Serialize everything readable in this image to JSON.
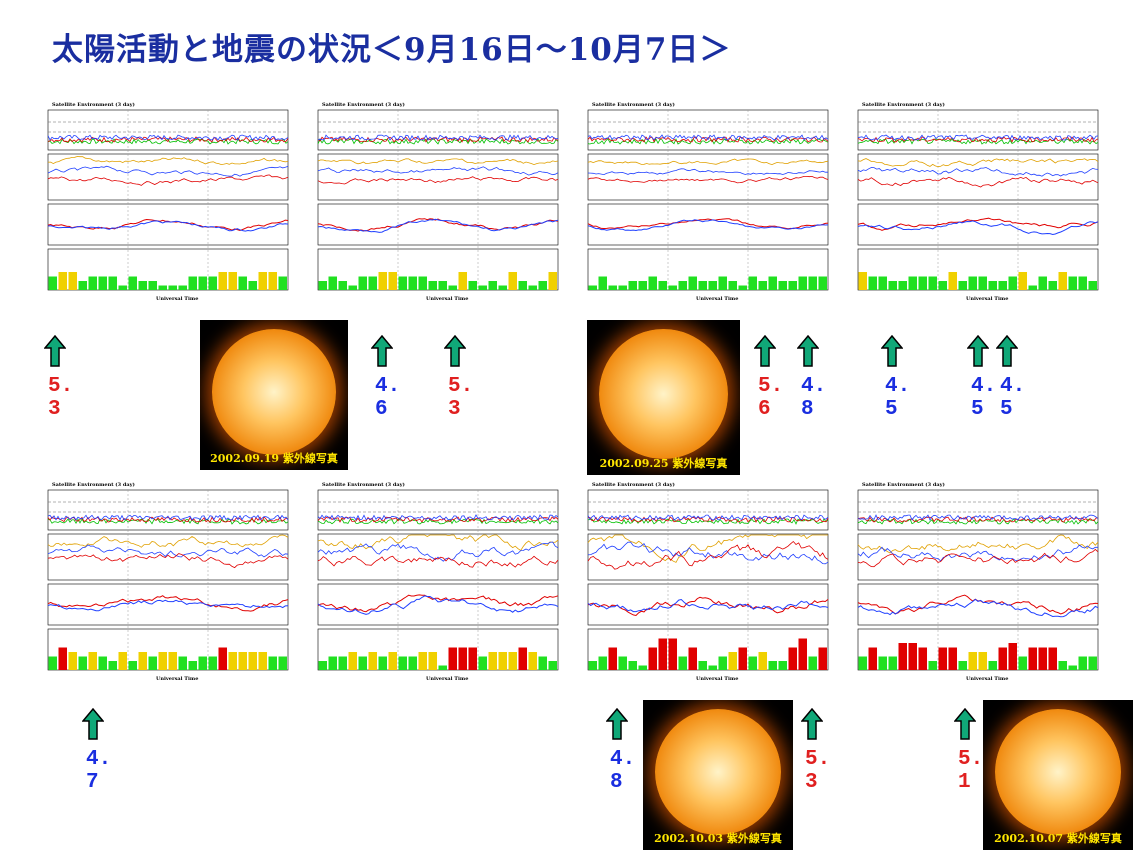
{
  "header": {
    "title": "太陽活動と地震の状況＜9月16日～10月7日＞"
  },
  "panels": [
    {
      "title": "Satellite Environment (3 day)",
      "x_axis_label": "Universal Time"
    },
    {
      "title": "Satellite Environment (3 day)",
      "x_axis_label": "Universal Time"
    },
    {
      "title": "Satellite Environment (3 day)",
      "x_axis_label": "Universal Time"
    },
    {
      "title": "Satellite Environment (3 day)",
      "x_axis_label": "Universal Time"
    },
    {
      "title": "Satellite Environment (3 day)",
      "x_axis_label": "Universal Time"
    },
    {
      "title": "Satellite Environment (3 day)",
      "x_axis_label": "Universal Time"
    },
    {
      "title": "Satellite Environment (3 day)",
      "x_axis_label": "Universal Time"
    },
    {
      "title": "Satellite Environment (3 day)",
      "x_axis_label": "Universal Time"
    }
  ],
  "sun_images": [
    {
      "caption": "2002.09.19 紫外線写真"
    },
    {
      "caption": "2002.09.25 紫外線写真"
    },
    {
      "caption": "2002.10.03 紫外線写真"
    },
    {
      "caption": "2002.10.07 紫外線写真"
    }
  ],
  "earthquakes": [
    {
      "magnitude": "5.3",
      "color": "#e02020"
    },
    {
      "magnitude": "4.6",
      "color": "#1a2ee0"
    },
    {
      "magnitude": "5.3",
      "color": "#e02020"
    },
    {
      "magnitude": "5.6",
      "color": "#e02020"
    },
    {
      "magnitude": "4.8",
      "color": "#1a2ee0"
    },
    {
      "magnitude": "4.5",
      "color": "#1a2ee0"
    },
    {
      "magnitude": "4.5",
      "color": "#1a2ee0"
    },
    {
      "magnitude": "4.5",
      "color": "#1a2ee0"
    },
    {
      "magnitude": "4.7",
      "color": "#1a2ee0"
    },
    {
      "magnitude": "4.8",
      "color": "#1a2ee0"
    },
    {
      "magnitude": "5.3",
      "color": "#e02020"
    },
    {
      "magnitude": "5.1",
      "color": "#e02020"
    }
  ]
}
